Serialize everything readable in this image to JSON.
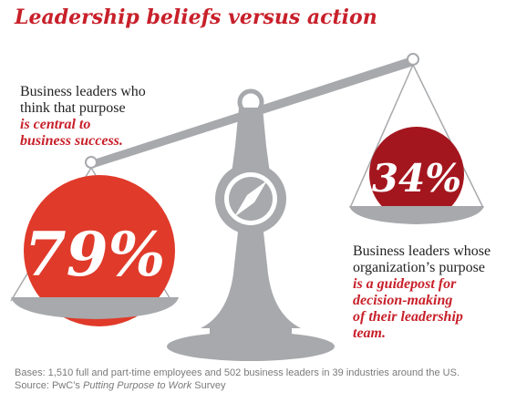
{
  "title": "Leadership beliefs versus action",
  "left_statement": {
    "line1": "Business leaders who",
    "line2": "think that purpose",
    "emphasis1": "is central to",
    "emphasis2": "business success."
  },
  "right_statement": {
    "line1": "Business leaders whose",
    "line2": "organization’s purpose",
    "emphasis1": "is a guidepost for",
    "emphasis2": "decision-making",
    "emphasis3": "of their leadership",
    "emphasis4": "team."
  },
  "footnote": {
    "bases": "Bases: 1,510 full and part-time employees and 502 business leaders in 39 industries around the US.",
    "source_prefix": "Source: PwC’s ",
    "source_title": "Putting Purpose to Work",
    "source_suffix": " Survey"
  },
  "colors": {
    "accent": "#c8202a",
    "bubble_left": "#e03a2a",
    "bubble_right": "#a4161e",
    "scale_gray": "#a7a9ac"
  },
  "chart_data": {
    "type": "pie",
    "title": "Leadership beliefs versus action",
    "series": [
      {
        "label": "79%",
        "value": 79
      },
      {
        "label": "34%",
        "value": 34
      }
    ]
  }
}
